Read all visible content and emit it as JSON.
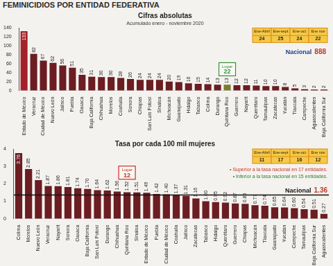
{
  "header": "FEMINICIDIOS POR ENTIDAD FEDERATIVA",
  "chart_data": [
    {
      "type": "bar",
      "title": "Cifras absolutas",
      "subtitle": "Acumulado enero - noviembre 2020",
      "categories": [
        "Estado de México",
        "Veracruz",
        "Ciudad de México",
        "Nuevo León",
        "Jalisco",
        "Puebla",
        "Oaxaca",
        "Baja California",
        "Chihuahua",
        "Morelos",
        "Coahuila",
        "Sonora",
        "Chiapas",
        "San Luis Potosí",
        "Sinaloa",
        "Michoacán",
        "Guanajuato",
        "Hidalgo",
        "Tabasco",
        "Colima",
        "Durango",
        "Quintana Roo",
        "Guerrero",
        "Nayarit",
        "Querétaro",
        "Tamaulipas",
        "Zacatecas",
        "Yucatán",
        "Tlaxcala",
        "Campeche",
        "Aguascalientes",
        "Baja California Sur"
      ],
      "values": [
        133,
        82,
        67,
        62,
        56,
        51,
        35,
        31,
        30,
        30,
        28,
        26,
        24,
        24,
        24,
        20,
        19,
        16,
        15,
        14,
        13,
        13,
        12,
        12,
        11,
        10,
        10,
        8,
        5,
        3,
        2,
        2
      ],
      "colors": [
        "#a3222a",
        "#6b1d22",
        "#6b1d22",
        "#6b1d22",
        "#6b1d22",
        "#6b1d22",
        "#6b1d22",
        "#6b1d22",
        "#6b1d22",
        "#6b1d22",
        "#6b1d22",
        "#6b1d22",
        "#6b1d22",
        "#6b1d22",
        "#6b1d22",
        "#6b1d22",
        "#6b1d22",
        "#6b1d22",
        "#6b1d22",
        "#6b1d22",
        "#6b1d22",
        "#7a7d2e",
        "#6b1d22",
        "#6b1d22",
        "#6b1d22",
        "#6b1d22",
        "#6b1d22",
        "#6b1d22",
        "#6b1d22",
        "#6b1d22",
        "#6b1d22",
        "#6b1d22"
      ],
      "ylim": [
        0,
        140
      ],
      "yticks": [
        0,
        20,
        40,
        60,
        80,
        100,
        120,
        140
      ],
      "grid": false,
      "data_labels": true,
      "period_table": {
        "headers": [
          "Ene-Abril",
          "Ene-sept",
          "Ene-oct",
          "Ene nov"
        ],
        "values": [
          24,
          25,
          24,
          22
        ]
      },
      "highlight": {
        "category": "Quintana Roo",
        "label": "Lugar",
        "value": 22,
        "color": "#3a8f3a"
      },
      "total": {
        "label": "Nacional",
        "value": 888
      }
    },
    {
      "type": "bar",
      "title": "Tasa por cada 100 mil mujeres",
      "categories": [
        "Colima",
        "Morelos",
        "Nuevo León",
        "Veracruz",
        "Nayarit",
        "Sonora",
        "Oaxaca",
        "Baja California",
        "San Luis Potosí",
        "Durango",
        "Chihuahua",
        "Quintana Roo",
        "Sinaloa",
        "Estado de México",
        "Puebla",
        "Ciudad de México",
        "Coahuila",
        "Jalisco",
        "Zacatecas",
        "Tabasco",
        "Hidalgo",
        "Querétaro",
        "Guerrero",
        "Chiapas",
        "Michoacán",
        "Tlaxcala",
        "Guanajuato",
        "Yucatán",
        "Campeche",
        "Tamaulipas",
        "Baja California Sur",
        "Aguascalientes"
      ],
      "values": [
        3.76,
        2.85,
        2.21,
        1.87,
        1.86,
        1.81,
        1.74,
        1.7,
        1.64,
        1.62,
        1.56,
        1.52,
        1.51,
        1.49,
        1.42,
        1.4,
        1.37,
        1.31,
        1.16,
        1.0,
        0.95,
        0.92,
        0.87,
        0.85,
        0.77,
        0.74,
        0.65,
        0.64,
        0.6,
        0.54,
        0.51,
        0.27
      ],
      "value_labels": [
        "3.76",
        "2.85",
        "2.21",
        "1.87",
        "1.86",
        "1.81",
        "1.74",
        "1.70",
        "1.64",
        "1.62",
        "1.56",
        "1.52",
        "1.51",
        "1.49",
        "1.42",
        "1.40",
        "1.37",
        "1.31",
        "1.16",
        "1.00",
        "0.95",
        "0.92",
        "0.87",
        "0.85",
        "0.77",
        "0.74",
        "0.65",
        "0.64",
        "0.60",
        "0.54",
        "0.51",
        "0.27"
      ],
      "colors": [
        "#6b1d22",
        "#6b1d22",
        "#6b1d22",
        "#6b1d22",
        "#6b1d22",
        "#6b1d22",
        "#6b1d22",
        "#6b1d22",
        "#6b1d22",
        "#6b1d22",
        "#6b1d22",
        "#6b1d22",
        "#6b1d22",
        "#6b1d22",
        "#6b1d22",
        "#6b1d22",
        "#6b1d22",
        "#6b1d22",
        "#6b1d22",
        "#6b1d22",
        "#6b1d22",
        "#6b1d22",
        "#6b1d22",
        "#6b1d22",
        "#6b1d22",
        "#6b1d22",
        "#6b1d22",
        "#6b1d22",
        "#6b1d22",
        "#6b1d22",
        "#6b1d22",
        "#6b1d22"
      ],
      "ylim": [
        0,
        4
      ],
      "yticks": [
        0,
        1,
        2,
        3,
        4
      ],
      "grid": false,
      "data_labels": true,
      "period_table": {
        "headers": [
          "Ene-Abril",
          "Ene-sept",
          "Ene-oct",
          "Ene nov"
        ],
        "values": [
          11,
          17,
          16,
          12
        ]
      },
      "highlight": {
        "category": "Quintana Roo",
        "label": "Lugar",
        "value": 12,
        "color": "#d62728"
      },
      "notes": [
        {
          "text": "• Superior a la tasa nacional en 17 entidades.",
          "color": "#c0392b"
        },
        {
          "text": "• Inferior a la tasa nacional en 15 entidades.",
          "color": "#2e7d32"
        }
      ],
      "reference_line": {
        "label": "Nacional",
        "value": 1.36
      }
    }
  ]
}
